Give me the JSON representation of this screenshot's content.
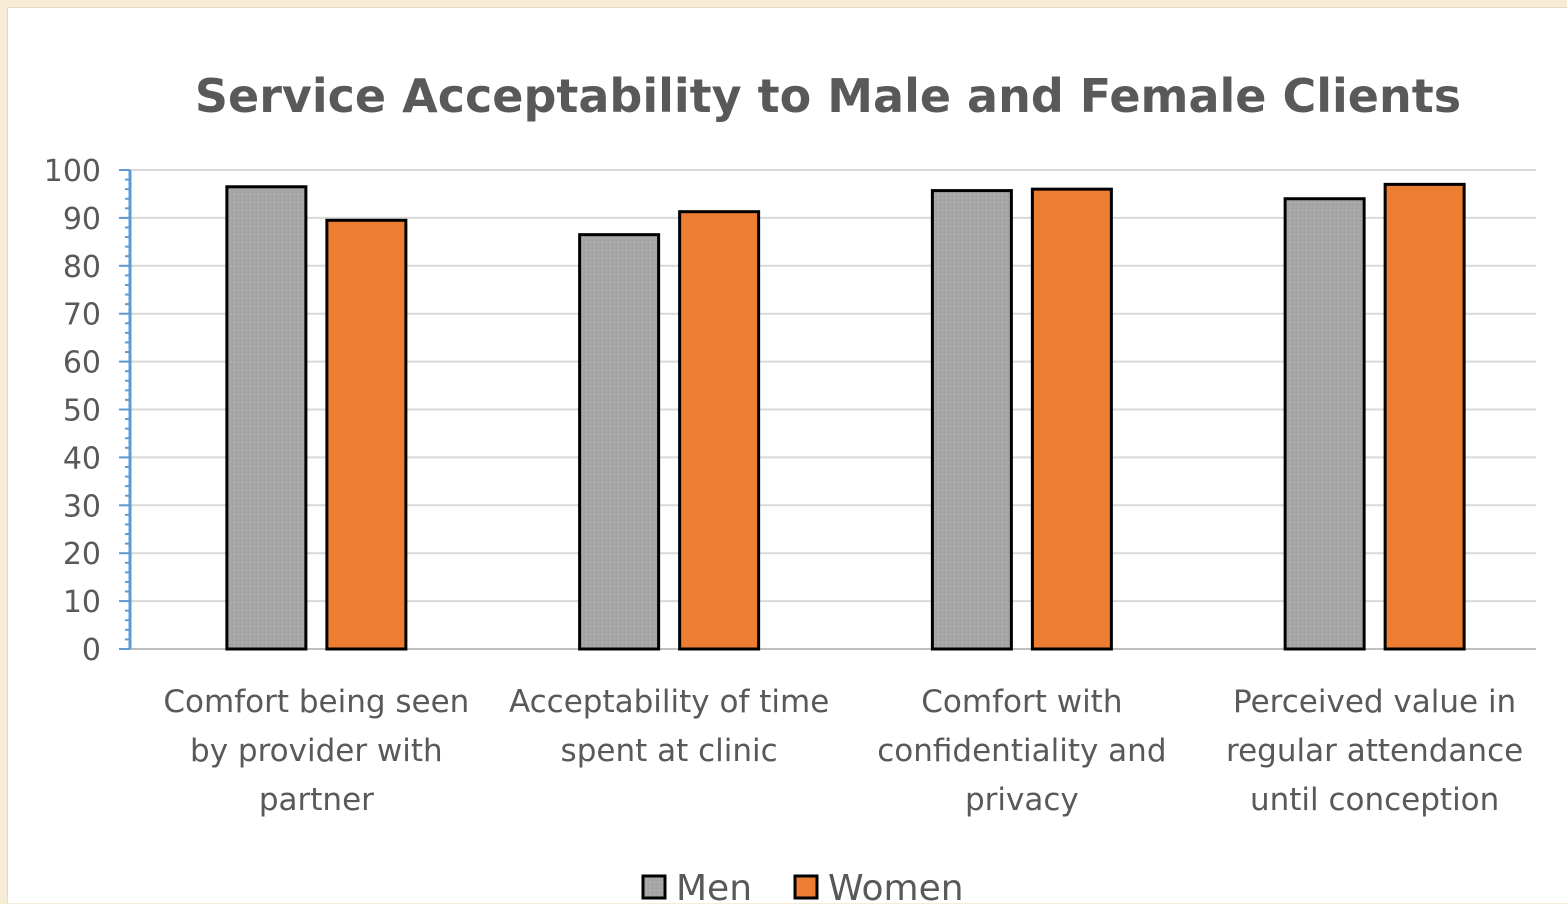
{
  "chart_data": {
    "type": "bar",
    "title": "Service Acceptability to Male and Female Clients",
    "xlabel": "",
    "ylabel": "",
    "ylim": [
      0,
      100
    ],
    "yticks": [
      0,
      10,
      20,
      30,
      40,
      50,
      60,
      70,
      80,
      90,
      100
    ],
    "grid": true,
    "legend_position": "bottom",
    "categories": [
      [
        "Comfort being seen",
        "by provider with",
        "partner"
      ],
      [
        "Acceptability of time",
        "spent at clinic"
      ],
      [
        "Comfort with",
        "confidentiality and",
        "privacy"
      ],
      [
        "Perceived value in",
        "regular attendance",
        "until conception"
      ]
    ],
    "series": [
      {
        "name": "Men",
        "color": "#a6a6a6",
        "values": [
          96.5,
          86.5,
          95.7,
          94
        ]
      },
      {
        "name": "Women",
        "color": "#ed7d31",
        "values": [
          89.5,
          91.3,
          96,
          97
        ]
      }
    ],
    "axis_color": "#5b9bd5",
    "grid_color": "#d9d9d9"
  }
}
